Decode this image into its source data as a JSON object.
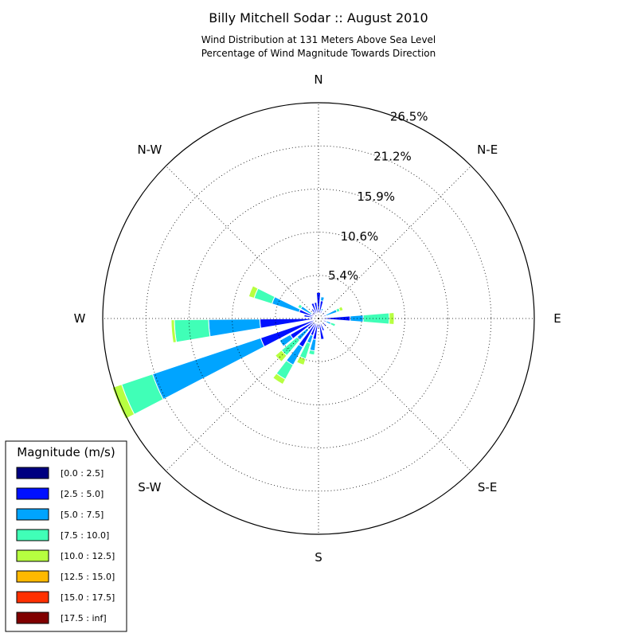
{
  "chart_data": {
    "type": "windrose",
    "title": "Billy Mitchell Sodar :: August 2010",
    "subtitle_lines": [
      "Wind Distribution at 131 Meters Above Sea Level",
      "Percentage of Wind Magnitude Towards Direction"
    ],
    "directions": [
      "N",
      "N-E",
      "E",
      "S-E",
      "S",
      "S-W",
      "W",
      "N-W"
    ],
    "ring_labels": [
      "5.4%",
      "10.6%",
      "15.9%",
      "21.2%",
      "26.5%"
    ],
    "r_max": 26.5,
    "grid": true,
    "legend_title": "Magnitude (m/s)",
    "legend_placement": "lower-left",
    "bins": [
      {
        "label": "[0.0 : 2.5]",
        "color": "#000080"
      },
      {
        "label": "[2.5 : 5.0]",
        "color": "#0010ff"
      },
      {
        "label": "[5.0 : 7.5]",
        "color": "#00a4ff"
      },
      {
        "label": "[7.5 : 10.0]",
        "color": "#40ffb7"
      },
      {
        "label": "[10.0 : 12.5]",
        "color": "#b7ff40"
      },
      {
        "label": "[12.5 : 15.0]",
        "color": "#ffb900"
      },
      {
        "label": "[15.0 : 17.5]",
        "color": "#ff3000"
      },
      {
        "label": "[17.5 : inf]",
        "color": "#800000"
      }
    ],
    "sectors": [
      {
        "direction_deg": 0,
        "cumulative": [
          0.6,
          3.2
        ]
      },
      {
        "direction_deg": 11,
        "cumulative": [
          0.4,
          2.2,
          2.7
        ]
      },
      {
        "direction_deg": 22,
        "cumulative": [
          0.4,
          1.0,
          1.3
        ]
      },
      {
        "direction_deg": 45,
        "cumulative": [
          0.4,
          1.0
        ]
      },
      {
        "direction_deg": 67,
        "cumulative": [
          0.4,
          1.0,
          2.4,
          2.8,
          3.2
        ]
      },
      {
        "direction_deg": 90,
        "cumulative": [
          0.4,
          3.9,
          5.5,
          8.7,
          9.3
        ]
      },
      {
        "direction_deg": 112,
        "cumulative": [
          0.4,
          1.0,
          1.6,
          2.2
        ]
      },
      {
        "direction_deg": 135,
        "cumulative": [
          0.4,
          1.3
        ]
      },
      {
        "direction_deg": 157,
        "cumulative": [
          0.4,
          1.6
        ]
      },
      {
        "direction_deg": 169,
        "cumulative": [
          0.4,
          2.6
        ]
      },
      {
        "direction_deg": 180,
        "cumulative": [
          0.4,
          1.2
        ]
      },
      {
        "direction_deg": 191,
        "cumulative": [
          0.4,
          2.6,
          4.0,
          4.5
        ]
      },
      {
        "direction_deg": 202,
        "cumulative": [
          0.4,
          2.2,
          3.2,
          5.2,
          6.0
        ]
      },
      {
        "direction_deg": 213,
        "cumulative": [
          0.4,
          4.0,
          6.5,
          8.5,
          9.2
        ]
      },
      {
        "direction_deg": 225,
        "cumulative": [
          0.4,
          1.8,
          3.5,
          6.0,
          7.0
        ]
      },
      {
        "direction_deg": 236,
        "cumulative": [
          0.4,
          4.0,
          5.5
        ]
      },
      {
        "direction_deg": 247,
        "cumulative": [
          0.4,
          7.5,
          21.5,
          25.5,
          26.7
        ]
      },
      {
        "direction_deg": 265,
        "cumulative": [
          0.4,
          7.2,
          13.5,
          17.7,
          18.1
        ]
      },
      {
        "direction_deg": 281,
        "cumulative": [
          0.4,
          1.8
        ]
      },
      {
        "direction_deg": 292,
        "cumulative": [
          0.4,
          2.5,
          6.0,
          8.3,
          9.0
        ]
      },
      {
        "direction_deg": 303,
        "cumulative": [
          0.4,
          1.0,
          2.5,
          2.9
        ]
      },
      {
        "direction_deg": 315,
        "cumulative": [
          0.4,
          1.0
        ]
      },
      {
        "direction_deg": 326,
        "cumulative": [
          0.4,
          1.4
        ]
      },
      {
        "direction_deg": 338,
        "cumulative": [
          0.4,
          2.0
        ]
      },
      {
        "direction_deg": 349,
        "cumulative": [
          0.4,
          2.0
        ]
      }
    ]
  }
}
